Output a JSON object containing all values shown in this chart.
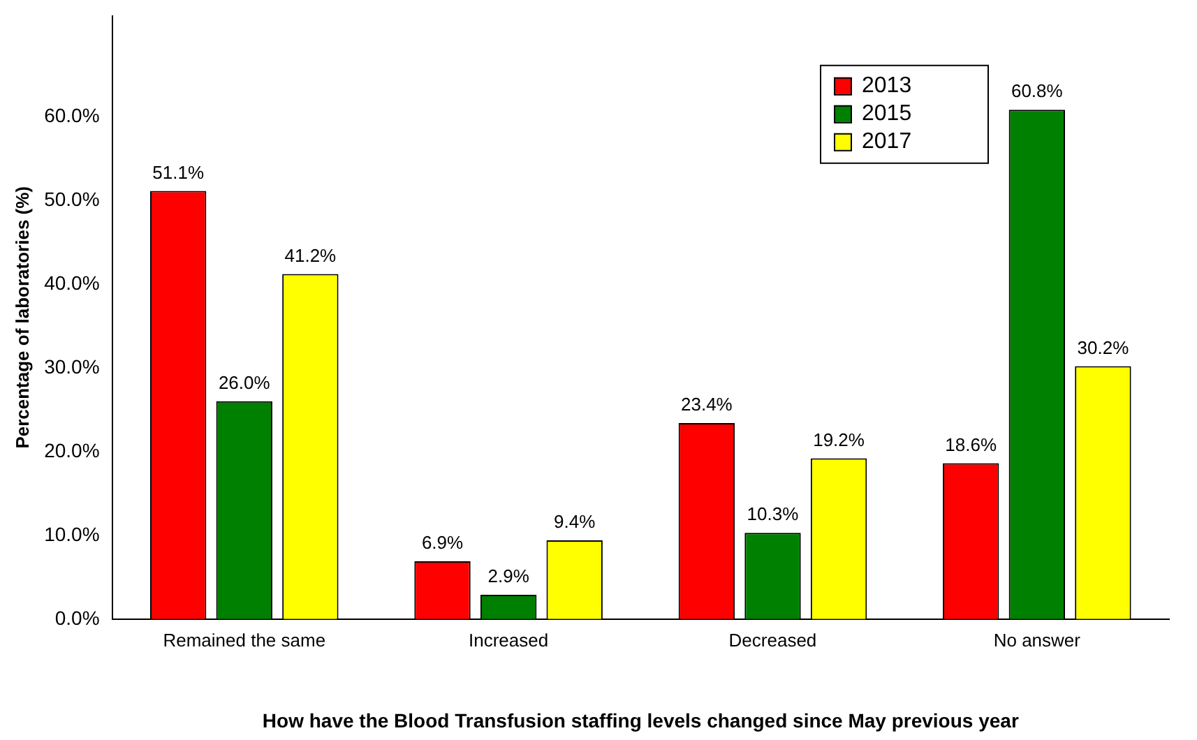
{
  "chart_data": {
    "type": "bar",
    "xlabel": "How have the Blood Transfusion staffing levels changed since May previous year",
    "ylabel": "Percentage of laboratories (%)",
    "categories": [
      "Remained the same",
      "Increased",
      "Decreased",
      "No answer"
    ],
    "series": [
      {
        "name": "2013",
        "color": "#ff0000",
        "values": [
          51.1,
          6.9,
          23.4,
          18.6
        ],
        "value_labels": [
          "51.1%",
          "6.9%",
          "23.4%",
          "18.6%"
        ]
      },
      {
        "name": "2015",
        "color": "#008000",
        "values": [
          26.0,
          2.9,
          10.3,
          60.8
        ],
        "value_labels": [
          "26.0%",
          "2.9%",
          "10.3%",
          "60.8%"
        ]
      },
      {
        "name": "2017",
        "color": "#ffff00",
        "values": [
          41.2,
          9.4,
          19.2,
          30.2
        ],
        "value_labels": [
          "41.2%",
          "9.4%",
          "19.2%",
          "30.2%"
        ]
      }
    ],
    "ylim": [
      0,
      72
    ],
    "yticks": [
      {
        "value": 0,
        "label": "0.0%"
      },
      {
        "value": 10,
        "label": "10.0%"
      },
      {
        "value": 20,
        "label": "20.0%"
      },
      {
        "value": 30,
        "label": "30.0%"
      },
      {
        "value": 40,
        "label": "40.0%"
      },
      {
        "value": 50,
        "label": "50.0%"
      },
      {
        "value": 60,
        "label": "60.0%"
      }
    ],
    "grid": false,
    "legend": "top right"
  }
}
